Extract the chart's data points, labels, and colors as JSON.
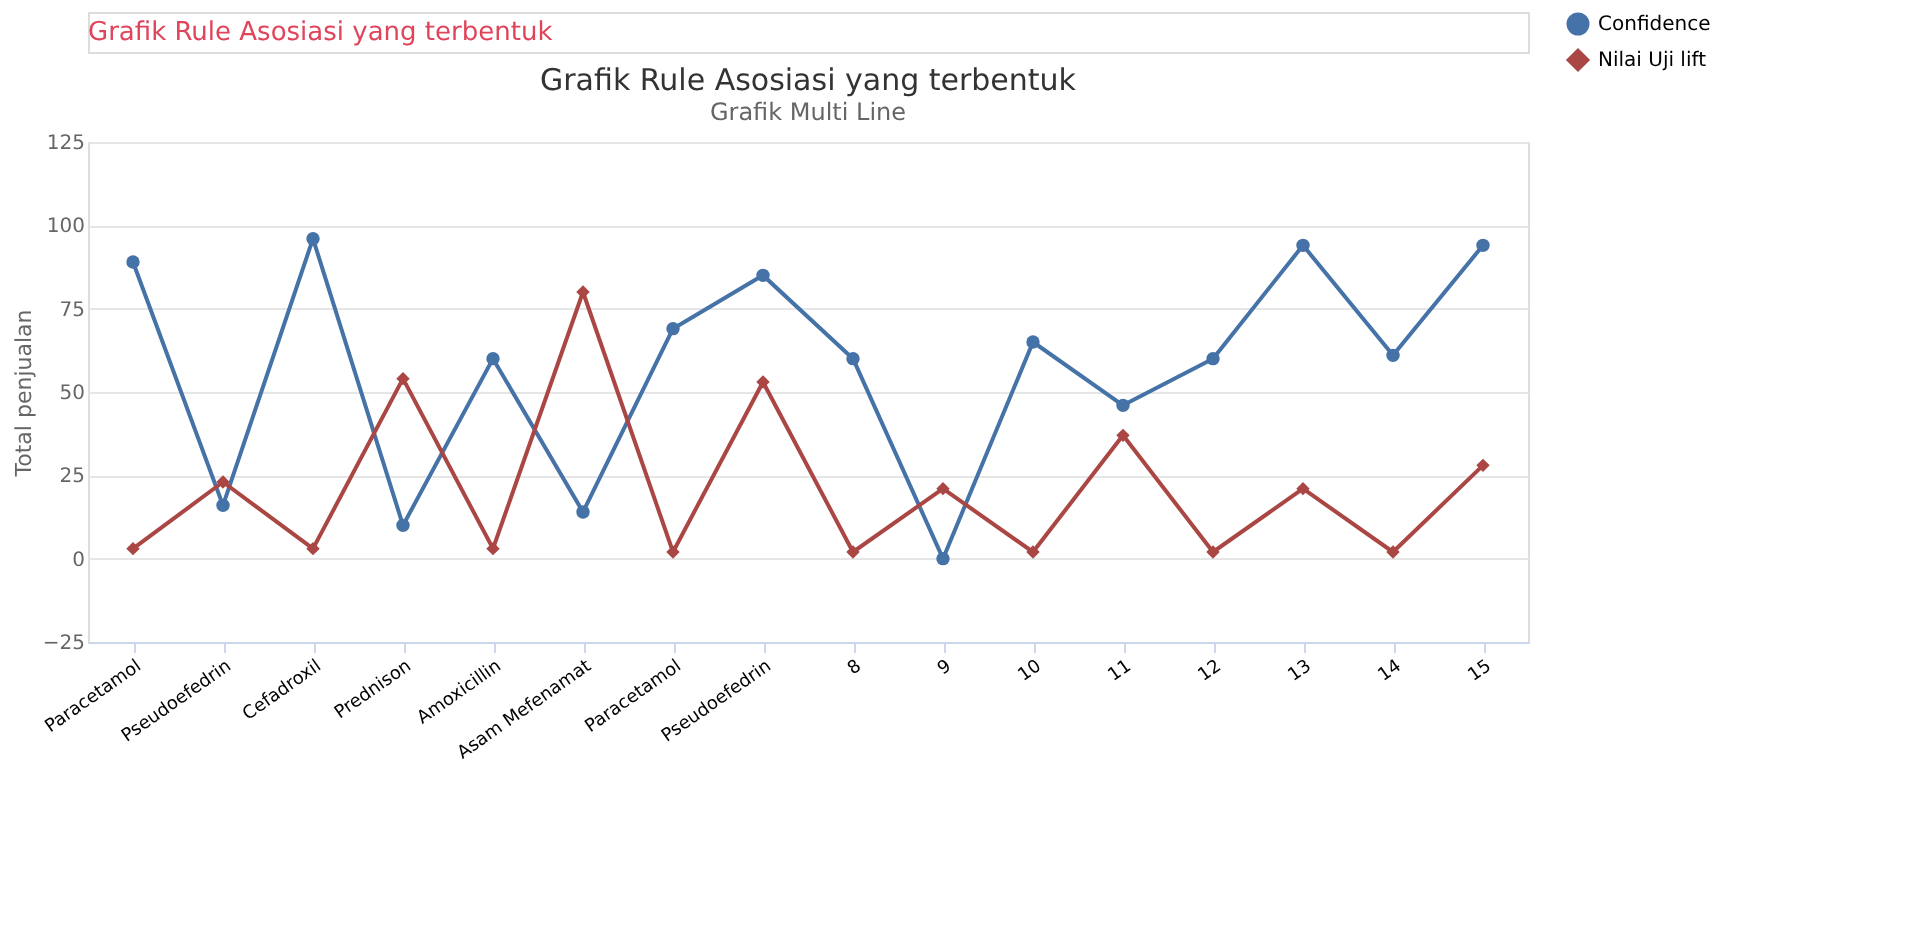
{
  "chart_data": {
    "type": "line",
    "title": "Grafik Rule Asosiasi yang terbentuk",
    "subtitle": "Grafik Multi Line",
    "ylabel": "Total penjualan",
    "annotations": [
      "Grafik Rule Asosiasi yang terbentuk"
    ],
    "categories": [
      "Paracetamol",
      "Pseudoefedrin",
      "Cefadroxil",
      "Prednison",
      "Amoxicillin",
      "Asam Mefenamat",
      "Paracetamol",
      "Pseudoefedrin",
      "8",
      "9",
      "10",
      "11",
      "12",
      "13",
      "14",
      "15"
    ],
    "series": [
      {
        "name": "Confidence",
        "color": "#4572a7",
        "marker": "circle",
        "values": [
          89,
          16,
          96,
          10,
          60,
          14,
          69,
          85,
          60,
          0,
          65,
          46,
          60,
          94,
          61,
          94
        ]
      },
      {
        "name": "Nilai Uji lift",
        "color": "#aa4643",
        "marker": "diamond",
        "values": [
          3,
          23,
          3,
          54,
          3,
          80,
          2,
          53,
          2,
          21,
          2,
          37,
          2,
          21,
          2,
          28
        ]
      }
    ],
    "ylim": [
      -25,
      125
    ],
    "yticks": [
      -25,
      0,
      25,
      50,
      75,
      100,
      125
    ],
    "grid": "y",
    "legend": "right",
    "line_style": "solid"
  }
}
